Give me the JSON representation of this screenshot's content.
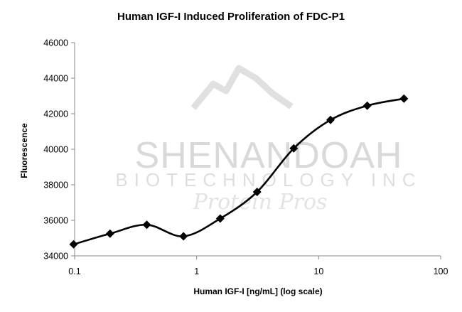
{
  "chart_data": {
    "type": "line",
    "title": "Human IGF-I Induced Proliferation of FDC-P1",
    "xlabel": "Human IGF-I  [ng/mL] (log scale)",
    "ylabel": "Fluorescence",
    "x_scale": "log",
    "xlim": [
      0.1,
      100
    ],
    "ylim": [
      34000,
      46000
    ],
    "x_ticks": [
      "0.1",
      "1",
      "10",
      "100"
    ],
    "y_ticks": [
      "34000",
      "36000",
      "38000",
      "40000",
      "42000",
      "44000",
      "46000"
    ],
    "grid": false,
    "legend": "none",
    "series": [
      {
        "color": "#000000",
        "marker": "diamond",
        "smooth": true,
        "x": [
          0.098,
          0.195,
          0.39,
          0.78,
          1.56,
          3.13,
          6.25,
          12.5,
          25,
          50
        ],
        "y": [
          34650,
          35250,
          35750,
          35100,
          36100,
          37600,
          40050,
          41650,
          42450,
          42850
        ]
      }
    ]
  },
  "watermark": {
    "line1": "SHENANDOAH",
    "line2": "BIOTECHNOLOGY INC",
    "line3": "Protein Pros"
  }
}
